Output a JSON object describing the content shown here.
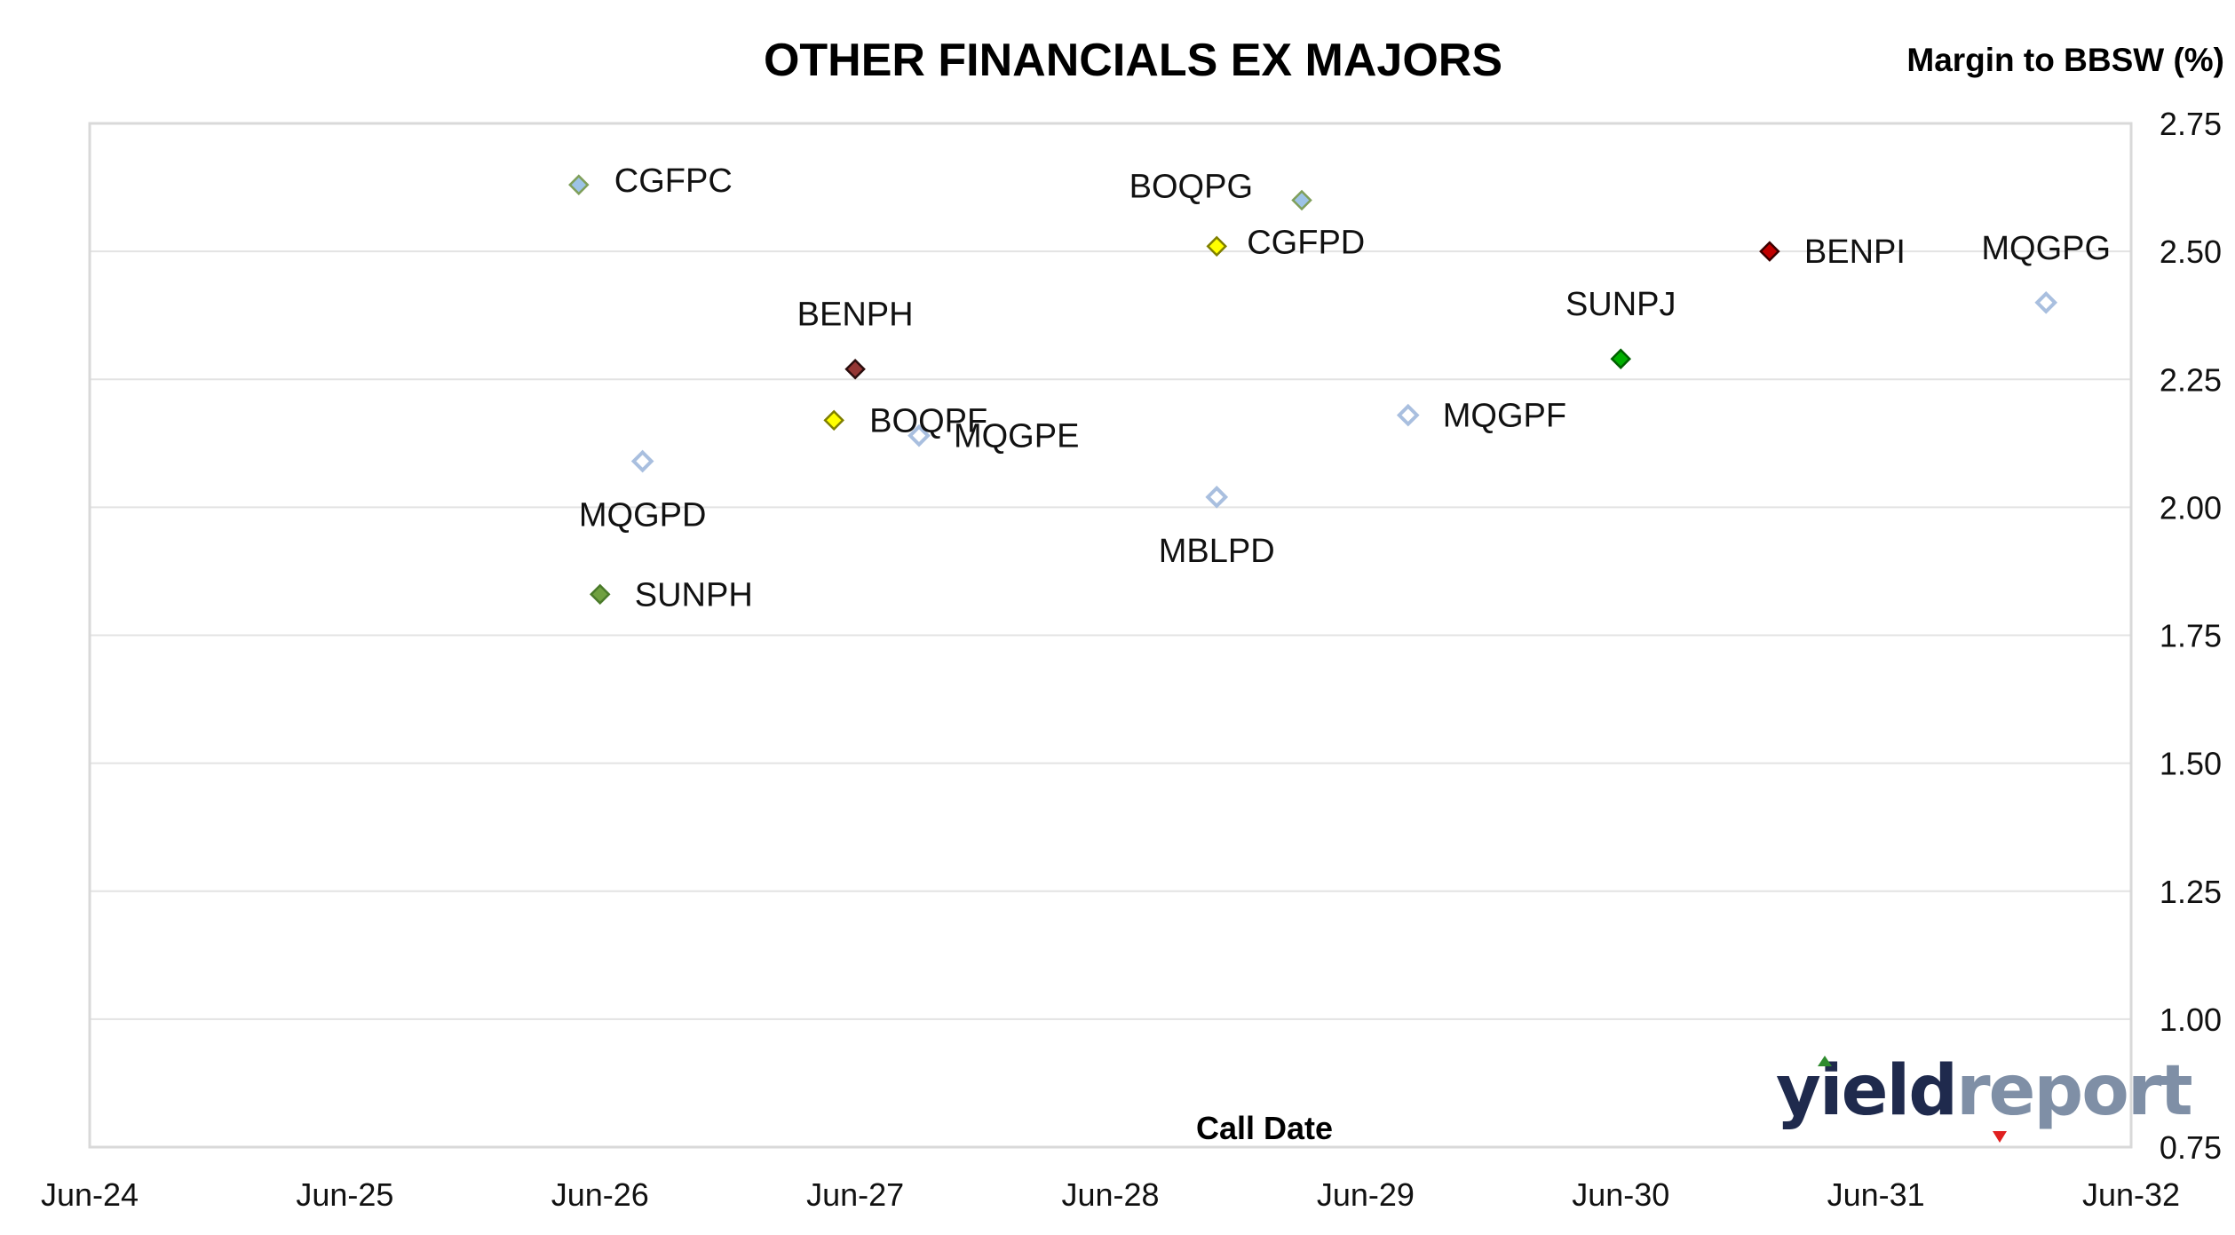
{
  "chart_data": {
    "type": "scatter",
    "title": "OTHER FINANCIALS EX MAJORS",
    "ylabel": "Margin to BBSW (%)",
    "xlabel": "Call Date",
    "xticks": [
      "Jun-24",
      "Jun-25",
      "Jun-26",
      "Jun-27",
      "Jun-28",
      "Jun-29",
      "Jun-30",
      "Jun-31",
      "Jun-32"
    ],
    "xlim": [
      0,
      8
    ],
    "yticks": [
      "0.75",
      "1.00",
      "1.25",
      "1.50",
      "1.75",
      "2.00",
      "2.25",
      "2.50",
      "2.75"
    ],
    "ylim": [
      0.75,
      2.75
    ],
    "y_axis_side": "right",
    "grid": true,
    "points": [
      {
        "label": "CGFPC",
        "x": "2026-05",
        "y": 2.63,
        "fill": "#9dc3e6",
        "stroke": "#7f9f5a"
      },
      {
        "label": "BOQPG",
        "x": "2029-03",
        "y": 2.6,
        "fill": "#9dc3e6",
        "stroke": "#7f9f5a"
      },
      {
        "label": "CGFPD",
        "x": "2028-11",
        "y": 2.51,
        "fill": "#ffff00",
        "stroke": "#7f7f00"
      },
      {
        "label": "BENPI",
        "x": "2031-01",
        "y": 2.5,
        "fill": "#c00000",
        "stroke": "#3a0000"
      },
      {
        "label": "MQGPG",
        "x": "2032-02",
        "y": 2.4,
        "fill": "#ffffff",
        "stroke": "#a9bfdf"
      },
      {
        "label": "SUNPJ",
        "x": "2030-06",
        "y": 2.29,
        "fill": "#00b000",
        "stroke": "#006000"
      },
      {
        "label": "BENPH",
        "x": "2027-06",
        "y": 2.27,
        "fill": "#943634",
        "stroke": "#2a0d0d"
      },
      {
        "label": "MQGPF",
        "x": "2029-08",
        "y": 2.18,
        "fill": "#ffffff",
        "stroke": "#a9bfdf"
      },
      {
        "label": "BOQPF",
        "x": "2027-05",
        "y": 2.17,
        "fill": "#ffff00",
        "stroke": "#7f7f00"
      },
      {
        "label": "MQGPE",
        "x": "2027-09",
        "y": 2.14,
        "fill": "#ffffff",
        "stroke": "#a9bfdf"
      },
      {
        "label": "MQGPD",
        "x": "2026-08",
        "y": 2.09,
        "fill": "#ffffff",
        "stroke": "#a9bfdf"
      },
      {
        "label": "MBLPD",
        "x": "2028-11",
        "y": 2.02,
        "fill": "#ffffff",
        "stroke": "#a9bfdf"
      },
      {
        "label": "SUNPH",
        "x": "2026-06",
        "y": 1.83,
        "fill": "#70a040",
        "stroke": "#4a7a2a"
      }
    ],
    "logo": "yieldreport"
  }
}
